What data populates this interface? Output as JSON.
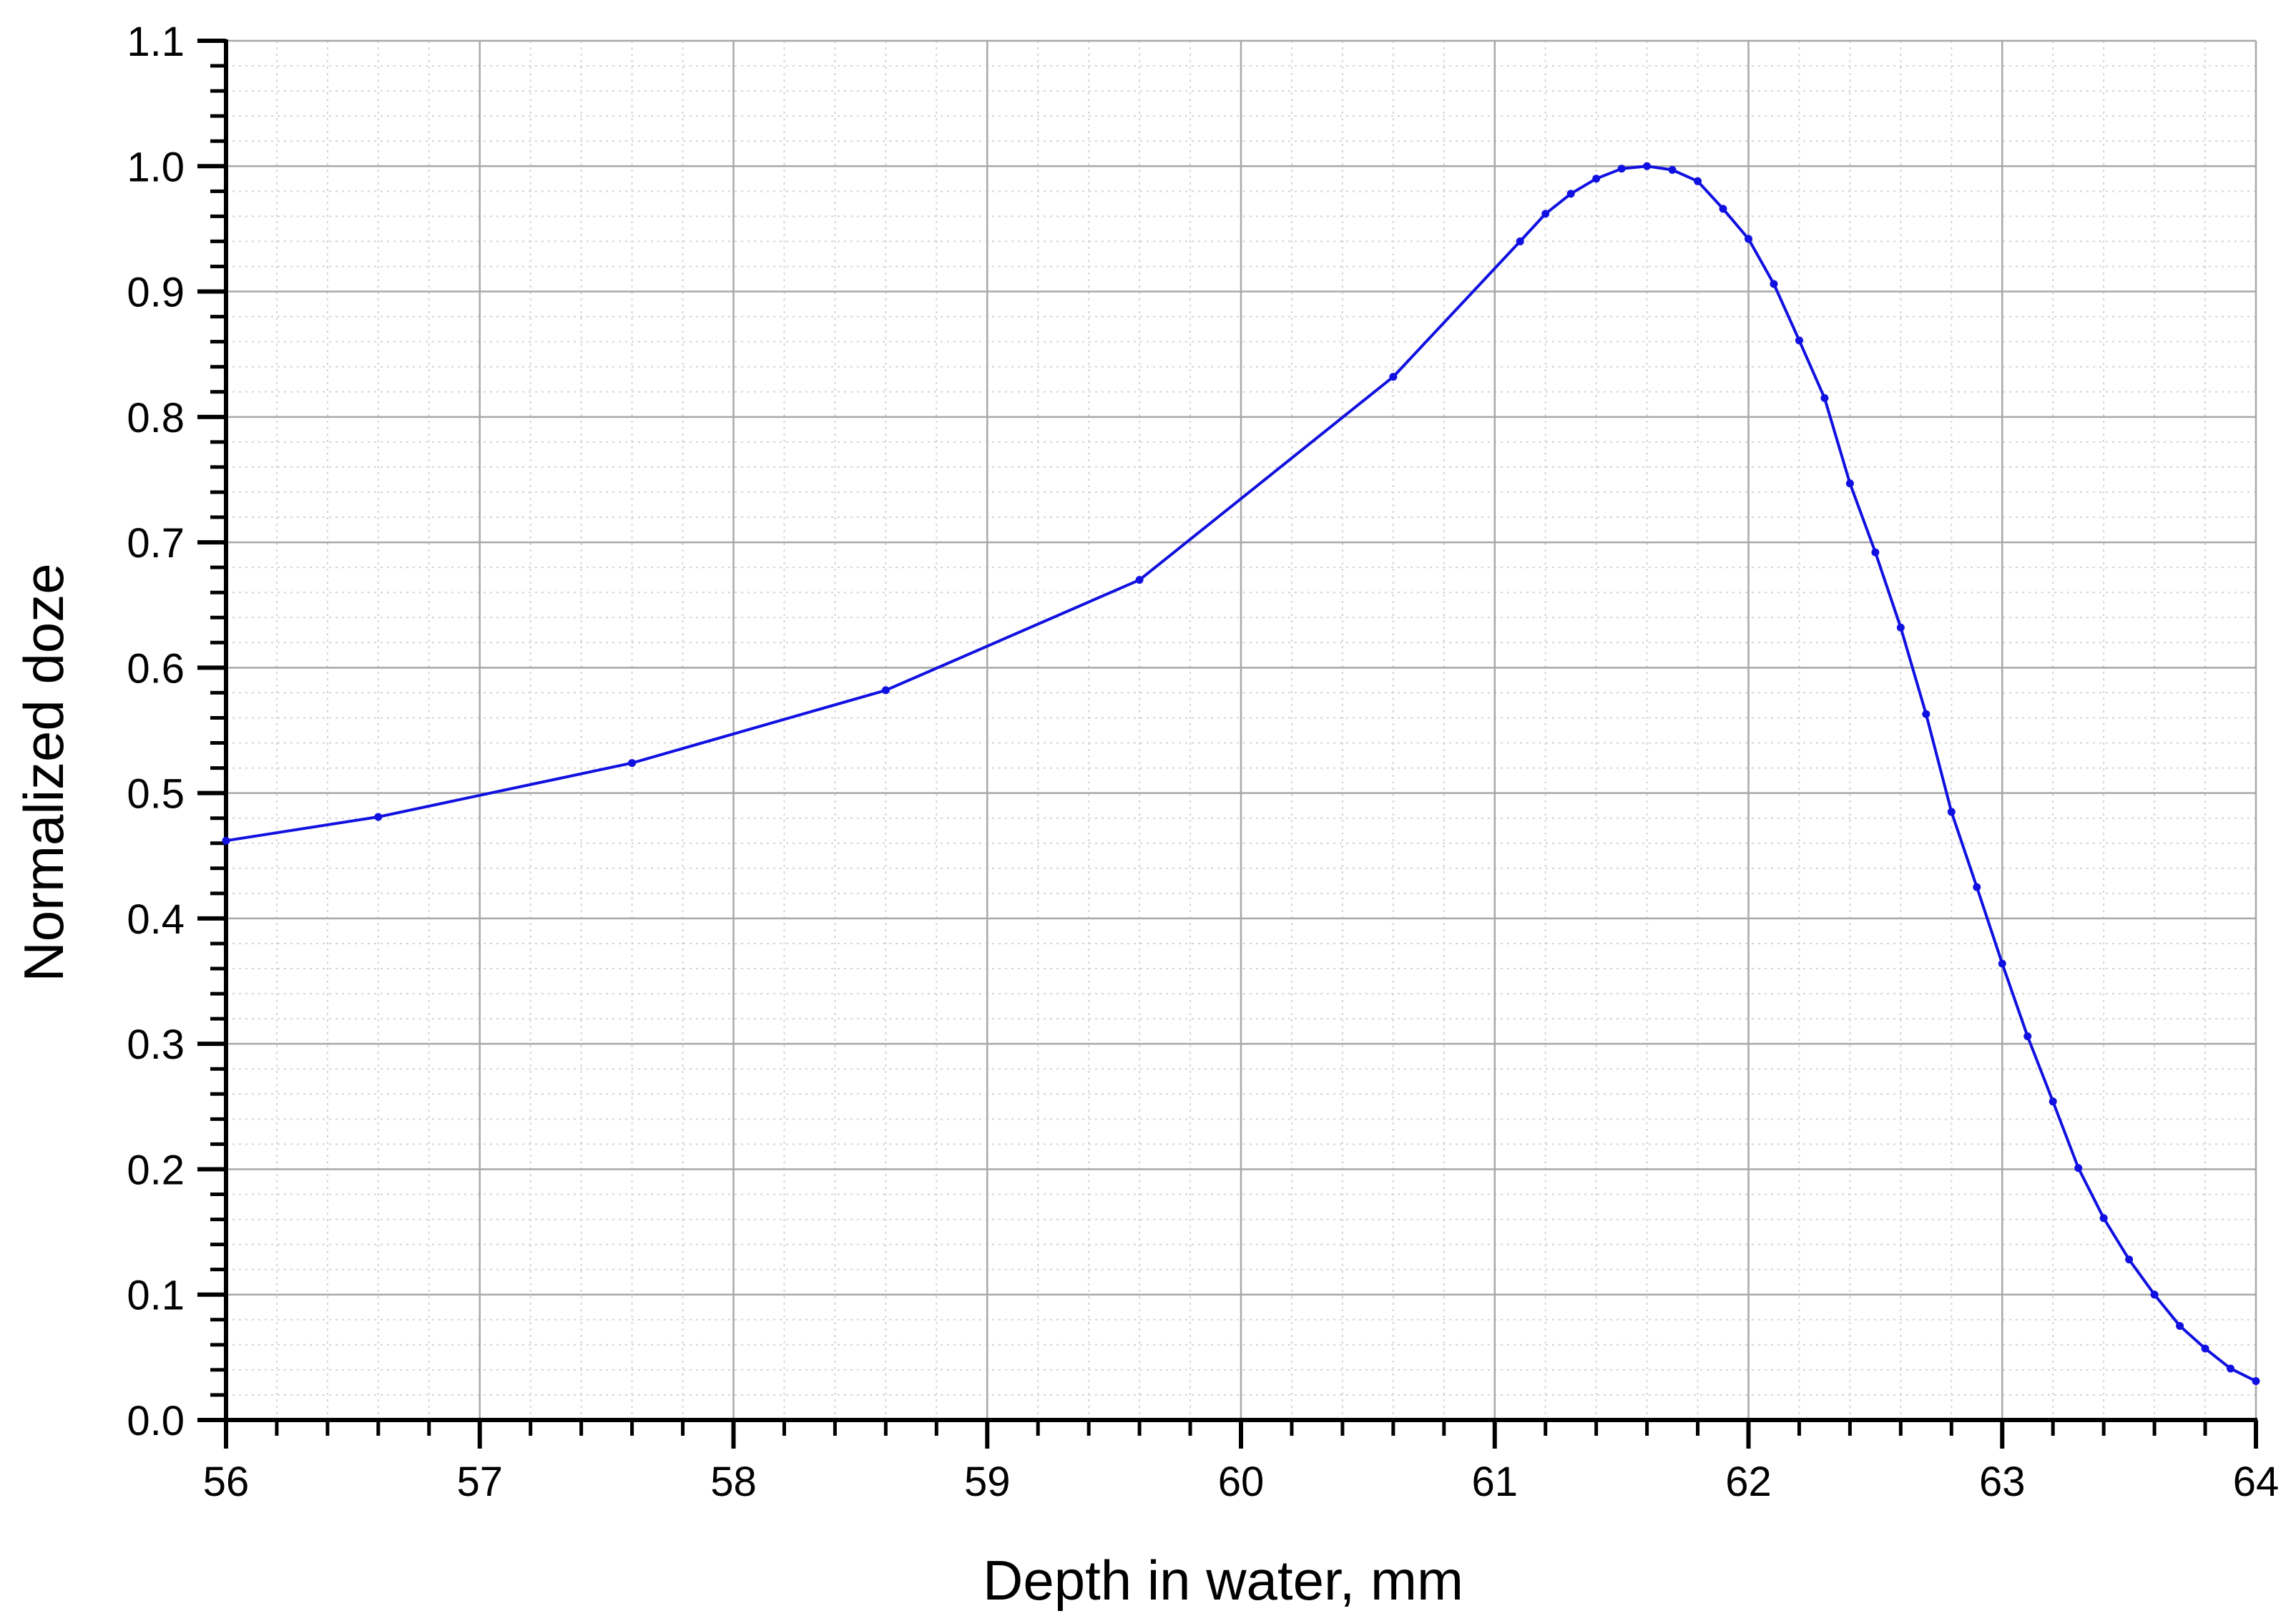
{
  "chart_data": {
    "type": "line",
    "title": "",
    "xlabel": "Depth in water, mm",
    "ylabel": "Normalized doze",
    "xlim": [
      56,
      64
    ],
    "ylim": [
      0.0,
      1.1
    ],
    "x_major_step": 1,
    "x_minor_per_major": 5,
    "y_major_step": 0.1,
    "y_minor_per_major": 5,
    "x_tick_labels": [
      "56",
      "57",
      "58",
      "59",
      "60",
      "61",
      "62",
      "63",
      "64"
    ],
    "y_tick_labels": [
      "0.0",
      "0.1",
      "0.2",
      "0.3",
      "0.4",
      "0.5",
      "0.6",
      "0.7",
      "0.8",
      "0.9",
      "1.0",
      "1.1"
    ],
    "grid": true,
    "legend": "none",
    "series": [
      {
        "color": "#1010e0",
        "x": [
          56.0,
          56.6,
          57.6,
          58.6,
          59.6,
          60.6,
          61.1,
          61.2,
          61.3,
          61.4,
          61.5,
          61.6,
          61.7,
          61.8,
          61.9,
          62.0,
          62.1,
          62.2,
          62.3,
          62.4,
          62.5,
          62.6,
          62.7,
          62.8,
          62.9,
          63.0,
          63.1,
          63.2,
          63.3,
          63.4,
          63.5,
          63.6,
          63.7,
          63.8,
          63.9,
          64.0
        ],
        "y": [
          0.462,
          0.481,
          0.524,
          0.582,
          0.67,
          0.832,
          0.94,
          0.962,
          0.978,
          0.99,
          0.998,
          1.0,
          0.997,
          0.988,
          0.966,
          0.942,
          0.906,
          0.861,
          0.815,
          0.747,
          0.692,
          0.632,
          0.563,
          0.485,
          0.425,
          0.364,
          0.306,
          0.254,
          0.201,
          0.161,
          0.128,
          0.1,
          0.075,
          0.057,
          0.041,
          0.031
        ]
      }
    ]
  }
}
